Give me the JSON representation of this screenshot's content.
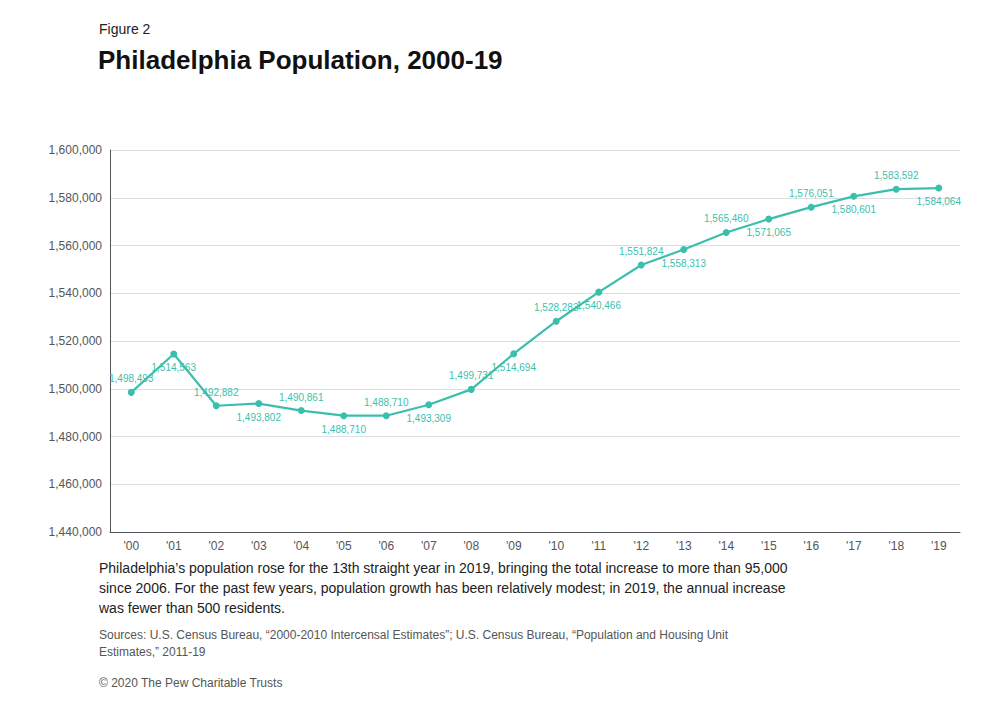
{
  "chart_data": {
    "type": "line",
    "subtitle": "Figure 2",
    "title": "Philadelphia Population, 2000-19",
    "categories": [
      "'00",
      "'01",
      "'02",
      "'03",
      "'04",
      "'05",
      "'06",
      "'07",
      "'08",
      "'09",
      "'10",
      "'11",
      "'12",
      "'13",
      "'14",
      "'15",
      "'16",
      "'17",
      "'18",
      "'19"
    ],
    "values": [
      1498493,
      1514563,
      1492882,
      1493802,
      1490861,
      1488710,
      1488710,
      1493309,
      1499731,
      1514694,
      1528283,
      1540466,
      1551824,
      1558313,
      1565460,
      1571065,
      1576051,
      1580601,
      1583592,
      1584064
    ],
    "value_labels": [
      "1,498,493",
      "1,514,563",
      "1,492,882",
      "1,493,802",
      "1,490,861",
      "1,488,710",
      "1,488,710",
      "1,493,309",
      "1,499,731",
      "1,514,694",
      "1,528,283",
      "1,540,466",
      "1,551,824",
      "1,558,313",
      "1,565,460",
      "1,571,065",
      "1,576,051",
      "1,580,601",
      "1,583,592",
      "1,584,064"
    ],
    "color": "#3bbfad",
    "marker": "circle",
    "ylim": [
      1440000,
      1600000
    ],
    "yticks": [
      {
        "value": 1440000,
        "label": "1,440,000"
      },
      {
        "value": 1460000,
        "label": "1,460,000"
      },
      {
        "value": 1480000,
        "label": "1,480,000"
      },
      {
        "value": 1500000,
        "label": "1,500,000"
      },
      {
        "value": 1520000,
        "label": "1,520,000"
      },
      {
        "value": 1540000,
        "label": "1,540,000"
      },
      {
        "value": 1560000,
        "label": "1,560,000"
      },
      {
        "value": 1580000,
        "label": "1,580,000"
      },
      {
        "value": 1600000,
        "label": "1,600,000"
      }
    ],
    "grid": true,
    "data_labels": true,
    "annotations": [
      "Philadelphia’s population rose for the 13th straight year in 2019, bringing the total increase to more than 95,000\nsince 2006. For the past few years, population growth has been relatively modest; in 2019, the annual increase\nwas fewer than 500 residents.",
      "Sources: U.S. Census Bureau, “2000-2010 Intercensal Estimates”; U.S. Census Bureau, “Population and Housing Unit\nEstimates,” 2011-19",
      "© 2020 The Pew Charitable Trusts"
    ]
  }
}
